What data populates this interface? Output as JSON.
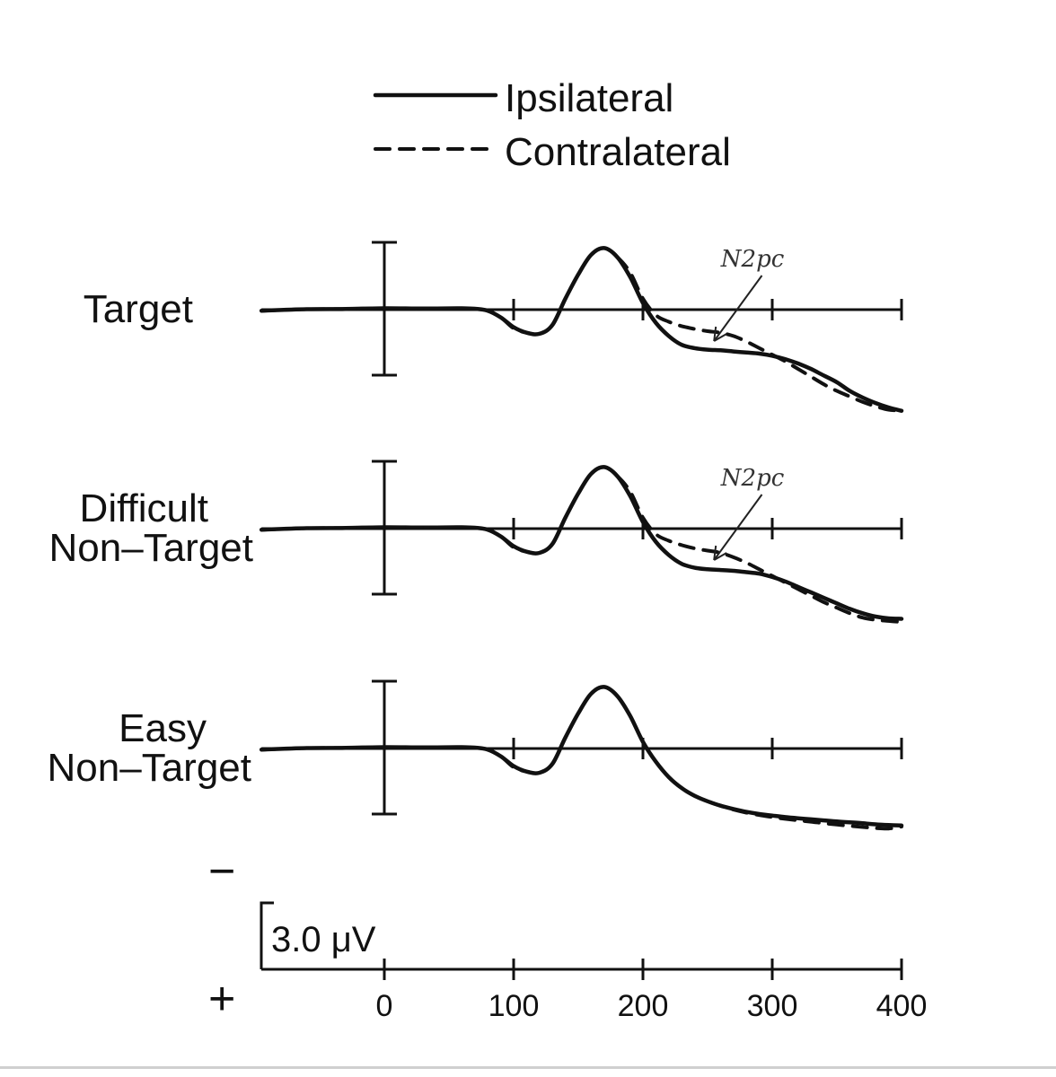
{
  "chart_data": {
    "type": "line",
    "legend": {
      "placement": "top-center",
      "entries": [
        {
          "name": "Ipsilateral",
          "style": "solid"
        },
        {
          "name": "Contralateral",
          "style": "dashed"
        }
      ]
    },
    "x_ticks": [
      0,
      100,
      200,
      300,
      400
    ],
    "xlim": [
      -95,
      400
    ],
    "scale_bar": {
      "value": 3.0,
      "label": "3.0 μV"
    },
    "polarity": {
      "negative": "−",
      "positive": "+"
    },
    "panels": [
      {
        "label": "Target",
        "annotation": "N2pc",
        "series": [
          {
            "name": "Ipsilateral",
            "style": "solid",
            "x": [
              -95,
              -60,
              -30,
              0,
              30,
              60,
              70,
              80,
              90,
              100,
              110,
              120,
              130,
              140,
              150,
              160,
              170,
              180,
              190,
              200,
              210,
              220,
              230,
              240,
              250,
              260,
              270,
              280,
              290,
              300,
              310,
              320,
              330,
              340,
              350,
              360,
              370,
              380,
              390,
              400
            ],
            "y": [
              -0.05,
              0.02,
              0.03,
              0.06,
              0.05,
              0.06,
              0.04,
              -0.05,
              -0.35,
              -0.8,
              -1.05,
              -1.1,
              -0.7,
              0.5,
              1.6,
              2.5,
              2.8,
              2.4,
              1.5,
              0.3,
              -0.6,
              -1.2,
              -1.6,
              -1.75,
              -1.82,
              -1.85,
              -1.9,
              -1.95,
              -2.0,
              -2.1,
              -2.25,
              -2.45,
              -2.7,
              -3.0,
              -3.3,
              -3.7,
              -4.0,
              -4.25,
              -4.45,
              -4.6
            ]
          },
          {
            "name": "Contralateral",
            "style": "dashed",
            "x": [
              -95,
              -60,
              -30,
              0,
              30,
              60,
              70,
              80,
              90,
              100,
              110,
              120,
              130,
              140,
              150,
              160,
              170,
              180,
              190,
              200,
              210,
              220,
              230,
              240,
              250,
              260,
              270,
              280,
              290,
              300,
              310,
              320,
              330,
              340,
              350,
              360,
              370,
              380,
              390,
              400
            ],
            "y": [
              -0.05,
              0.02,
              0.03,
              0.06,
              0.05,
              0.06,
              0.04,
              -0.05,
              -0.35,
              -0.85,
              -1.05,
              -1.1,
              -0.7,
              0.5,
              1.6,
              2.5,
              2.8,
              2.4,
              1.7,
              0.5,
              -0.25,
              -0.55,
              -0.75,
              -0.88,
              -0.98,
              -1.05,
              -1.2,
              -1.45,
              -1.75,
              -2.05,
              -2.35,
              -2.7,
              -3.05,
              -3.4,
              -3.7,
              -3.95,
              -4.2,
              -4.4,
              -4.55,
              -4.6
            ]
          }
        ]
      },
      {
        "label": "Difficult\nNon–Target",
        "annotation": "N2pc",
        "series": [
          {
            "name": "Ipsilateral",
            "style": "solid",
            "x": [
              -95,
              -60,
              -30,
              0,
              30,
              60,
              70,
              80,
              90,
              100,
              110,
              120,
              130,
              140,
              150,
              160,
              170,
              180,
              190,
              200,
              210,
              220,
              230,
              240,
              250,
              260,
              270,
              280,
              290,
              300,
              310,
              320,
              330,
              340,
              350,
              360,
              370,
              380,
              390,
              400
            ],
            "y": [
              -0.05,
              0.02,
              0.03,
              0.06,
              0.05,
              0.06,
              0.04,
              -0.05,
              -0.35,
              -0.8,
              -1.05,
              -1.1,
              -0.7,
              0.5,
              1.6,
              2.5,
              2.8,
              2.4,
              1.5,
              0.3,
              -0.6,
              -1.2,
              -1.6,
              -1.78,
              -1.85,
              -1.88,
              -1.92,
              -1.98,
              -2.05,
              -2.2,
              -2.4,
              -2.65,
              -2.9,
              -3.15,
              -3.4,
              -3.65,
              -3.85,
              -4.0,
              -4.08,
              -4.1
            ]
          },
          {
            "name": "Contralateral",
            "style": "dashed",
            "x": [
              -95,
              -60,
              -30,
              0,
              30,
              60,
              70,
              80,
              90,
              100,
              110,
              120,
              130,
              140,
              150,
              160,
              170,
              180,
              190,
              200,
              210,
              220,
              230,
              240,
              250,
              260,
              270,
              280,
              290,
              300,
              310,
              320,
              330,
              340,
              350,
              360,
              370,
              380,
              390,
              400
            ],
            "y": [
              -0.05,
              0.02,
              0.03,
              0.06,
              0.05,
              0.06,
              0.04,
              -0.05,
              -0.35,
              -0.85,
              -1.05,
              -1.1,
              -0.7,
              0.5,
              1.6,
              2.5,
              2.8,
              2.4,
              1.7,
              0.5,
              -0.25,
              -0.55,
              -0.75,
              -0.9,
              -1.0,
              -1.1,
              -1.3,
              -1.55,
              -1.85,
              -2.15,
              -2.45,
              -2.75,
              -3.05,
              -3.35,
              -3.6,
              -3.85,
              -4.05,
              -4.15,
              -4.2,
              -4.25
            ]
          }
        ]
      },
      {
        "label": "Easy\nNon–Target",
        "annotation": "",
        "series": [
          {
            "name": "Ipsilateral",
            "style": "solid",
            "x": [
              -95,
              -60,
              -30,
              0,
              30,
              60,
              70,
              80,
              90,
              100,
              110,
              120,
              130,
              140,
              150,
              160,
              170,
              180,
              190,
              200,
              210,
              220,
              230,
              240,
              250,
              260,
              270,
              280,
              290,
              300,
              310,
              320,
              330,
              340,
              350,
              360,
              370,
              380,
              390,
              400
            ],
            "y": [
              -0.05,
              0.02,
              0.03,
              0.06,
              0.05,
              0.06,
              0.04,
              -0.05,
              -0.35,
              -0.8,
              -1.05,
              -1.1,
              -0.7,
              0.5,
              1.6,
              2.5,
              2.8,
              2.4,
              1.5,
              0.3,
              -0.6,
              -1.3,
              -1.8,
              -2.15,
              -2.4,
              -2.6,
              -2.75,
              -2.88,
              -2.98,
              -3.05,
              -3.12,
              -3.17,
              -3.22,
              -3.27,
              -3.32,
              -3.36,
              -3.4,
              -3.45,
              -3.48,
              -3.5
            ]
          },
          {
            "name": "Contralateral",
            "style": "dashed",
            "x": [
              -95,
              -60,
              -30,
              0,
              30,
              60,
              70,
              80,
              90,
              100,
              110,
              120,
              130,
              140,
              150,
              160,
              170,
              180,
              190,
              200,
              210,
              220,
              230,
              240,
              250,
              260,
              270,
              280,
              290,
              300,
              310,
              320,
              330,
              340,
              350,
              360,
              370,
              380,
              390,
              400
            ],
            "y": [
              -0.05,
              0.02,
              0.03,
              0.06,
              0.05,
              0.06,
              0.04,
              -0.05,
              -0.35,
              -0.85,
              -1.05,
              -1.1,
              -0.7,
              0.5,
              1.6,
              2.5,
              2.8,
              2.4,
              1.5,
              0.3,
              -0.6,
              -1.3,
              -1.8,
              -2.15,
              -2.4,
              -2.6,
              -2.78,
              -2.92,
              -3.03,
              -3.12,
              -3.2,
              -3.27,
              -3.33,
              -3.4,
              -3.46,
              -3.52,
              -3.57,
              -3.62,
              -3.64,
              -3.55
            ]
          }
        ]
      }
    ]
  }
}
